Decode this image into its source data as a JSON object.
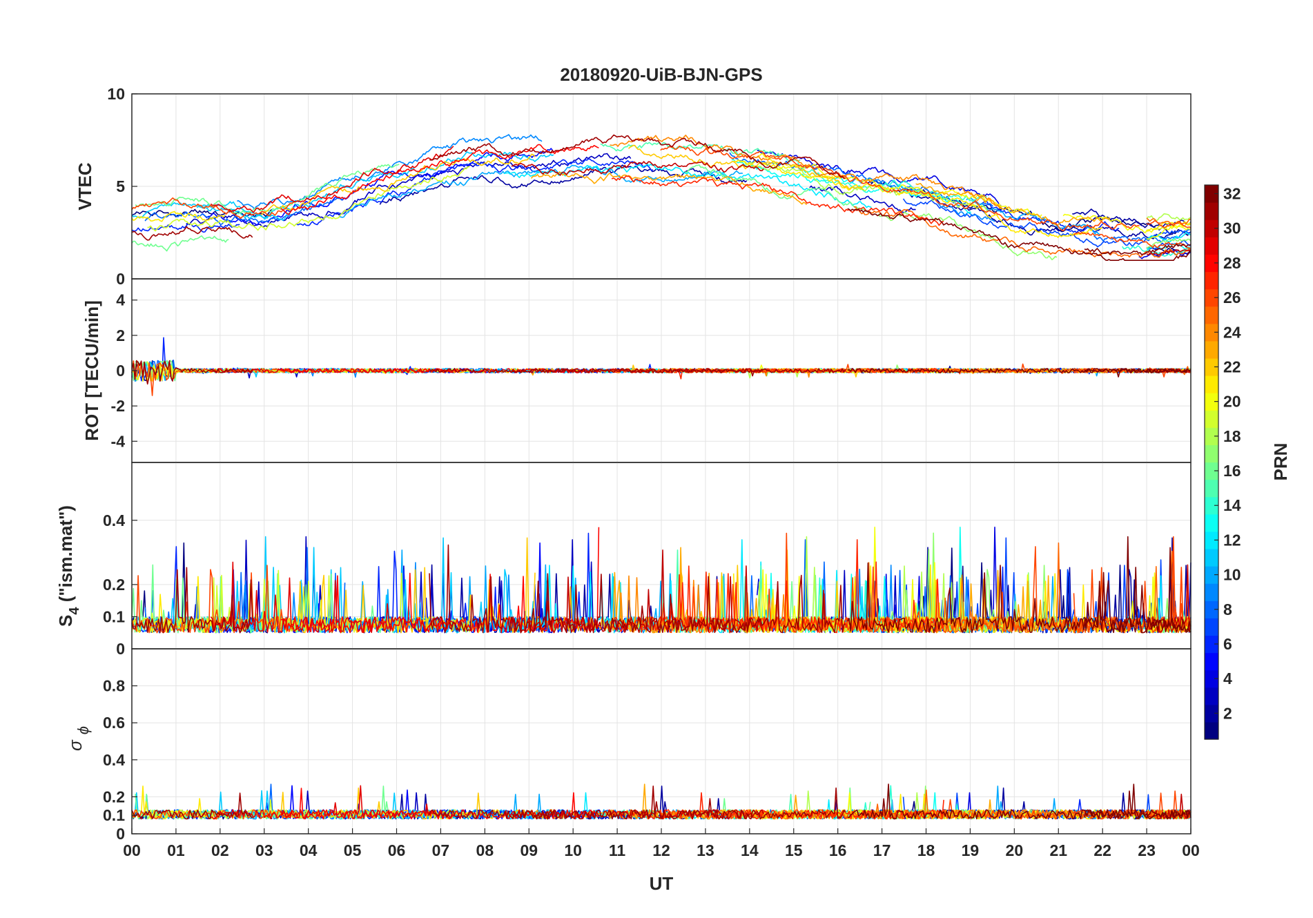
{
  "chart_data": {
    "type": "line",
    "title": "20180920-UiB-BJN-GPS",
    "xlabel": "UT",
    "x_ticks": [
      "00",
      "01",
      "02",
      "03",
      "04",
      "05",
      "06",
      "07",
      "08",
      "09",
      "10",
      "11",
      "12",
      "13",
      "14",
      "15",
      "16",
      "17",
      "18",
      "19",
      "20",
      "21",
      "22",
      "23",
      "00"
    ],
    "xlim": [
      0,
      24
    ],
    "panels": [
      {
        "id": "vtec",
        "ylabel": "VTEC",
        "ylim": [
          0,
          10
        ],
        "y_ticks": [
          0,
          5,
          10
        ],
        "y_tick_labels": [
          "0",
          "5",
          "10"
        ],
        "description_values": {
          "baseline": [
            [
              0,
              3.0
            ],
            [
              1,
              3.1
            ],
            [
              2,
              3.2
            ],
            [
              3,
              3.1
            ],
            [
              4,
              3.6
            ],
            [
              5,
              4.4
            ],
            [
              6,
              5.2
            ],
            [
              7,
              5.8
            ],
            [
              8,
              6.2
            ],
            [
              9,
              6.4
            ],
            [
              10,
              6.5
            ],
            [
              11,
              6.6
            ],
            [
              12,
              6.5
            ],
            [
              13,
              6.4
            ],
            [
              14,
              6.1
            ],
            [
              15,
              5.6
            ],
            [
              16,
              5.0
            ],
            [
              17,
              4.6
            ],
            [
              18,
              4.3
            ],
            [
              19,
              3.7
            ],
            [
              20,
              3.0
            ],
            [
              21,
              2.6
            ],
            [
              22,
              2.4
            ],
            [
              23,
              2.3
            ],
            [
              24,
              2.5
            ]
          ]
        }
      },
      {
        "id": "rot",
        "ylabel": "ROT [TECU/min]",
        "ylim": [
          -5.2,
          5.2
        ],
        "y_ticks": [
          -4,
          -2,
          0,
          2,
          4
        ],
        "y_tick_labels": [
          "-4",
          "-2",
          "0",
          "2",
          "4"
        ]
      },
      {
        "id": "s4",
        "ylabel_main": "S",
        "ylabel_sub": "4",
        "ylabel_rest": " (\"ism.mat\")",
        "ylim": [
          0,
          0.58
        ],
        "y_ticks": [
          0,
          0.1,
          0.2,
          0.4
        ],
        "y_tick_labels": [
          "0",
          "0.1",
          "0.2",
          "0.4"
        ]
      },
      {
        "id": "sigma",
        "ylabel_main": "σ",
        "ylabel_sub": "ϕ",
        "ylim": [
          0,
          1
        ],
        "y_ticks": [
          0,
          0.1,
          0.2,
          0.4,
          0.6,
          0.8
        ],
        "y_tick_labels": [
          "0",
          "0.1",
          "0.2",
          "0.4",
          "0.6",
          "0.8"
        ]
      }
    ],
    "colorbar": {
      "label": "PRN",
      "range": [
        1,
        32
      ],
      "ticks": [
        2,
        4,
        6,
        8,
        10,
        12,
        14,
        16,
        18,
        20,
        22,
        24,
        26,
        28,
        30,
        32
      ],
      "colormap": "jet"
    },
    "series_count": 32,
    "grid": true
  }
}
